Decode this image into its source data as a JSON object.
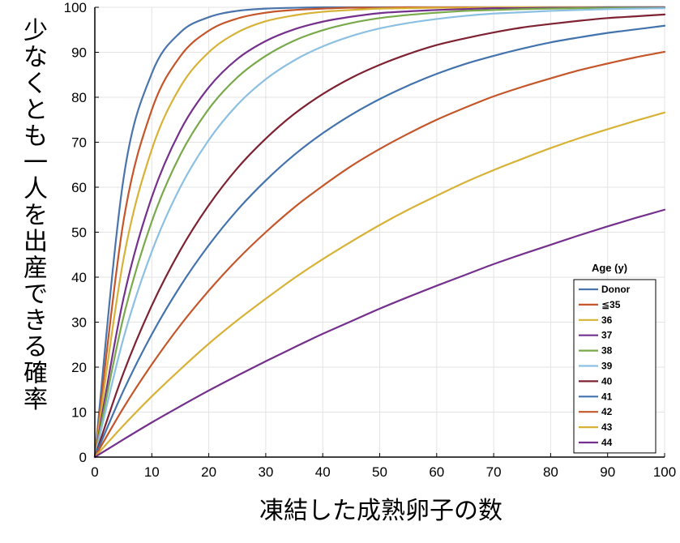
{
  "chart_data": {
    "type": "line",
    "title": "",
    "xlabel": "凍結した成熟卵子の数",
    "ylabel": "少なくとも一人を出産できる確率",
    "xlim": [
      0,
      100
    ],
    "ylim": [
      0,
      100
    ],
    "xticks": [
      "0",
      "10",
      "20",
      "30",
      "40",
      "50",
      "60",
      "70",
      "80",
      "90",
      "100"
    ],
    "yticks": [
      "0",
      "10",
      "20",
      "30",
      "40",
      "50",
      "60",
      "70",
      "80",
      "90",
      "100"
    ],
    "grid": true,
    "legend": {
      "title": "Age (y)",
      "placement": "bottom-right"
    },
    "x": [
      0,
      5,
      10,
      15,
      20,
      25,
      30,
      35,
      40,
      45,
      50,
      55,
      60,
      65,
      70,
      75,
      80,
      85,
      90,
      95,
      100
    ],
    "series": [
      {
        "name": "Donor",
        "color": "#4a74ac",
        "values": [
          0,
          61.6,
          85.3,
          94.4,
          97.8,
          99.2,
          99.7,
          99.9,
          100,
          100,
          100,
          100,
          100,
          100,
          100,
          100,
          100,
          100,
          100,
          100,
          100
        ]
      },
      {
        "name": "≦35",
        "color": "#c5562a",
        "values": [
          0,
          52.2,
          77.2,
          89.1,
          94.8,
          97.5,
          98.8,
          99.4,
          99.7,
          99.9,
          99.9,
          100,
          100,
          100,
          100,
          100,
          100,
          100,
          100,
          100,
          100
        ]
      },
      {
        "name": "36",
        "color": "#d8b236",
        "values": [
          0,
          43.8,
          68.4,
          82.3,
          90.0,
          94.4,
          96.9,
          98.2,
          99.0,
          99.4,
          99.7,
          99.8,
          99.9,
          99.9,
          100,
          100,
          100,
          100,
          100,
          100,
          100
        ]
      },
      {
        "name": "37",
        "color": "#74308c",
        "values": [
          0,
          35.1,
          57.8,
          72.6,
          82.2,
          88.5,
          92.5,
          95.1,
          96.8,
          97.9,
          98.7,
          99.1,
          99.4,
          99.6,
          99.8,
          99.8,
          99.9,
          99.9,
          100,
          100,
          100
        ]
      },
      {
        "name": "38",
        "color": "#78a94a",
        "values": [
          0,
          31.0,
          52.4,
          67.2,
          77.4,
          84.4,
          89.2,
          92.6,
          94.9,
          96.5,
          97.6,
          98.3,
          98.8,
          99.2,
          99.4,
          99.6,
          99.7,
          99.8,
          99.9,
          99.9,
          99.9
        ]
      },
      {
        "name": "39",
        "color": "#8cc0e2",
        "values": [
          0,
          26.3,
          45.7,
          60.0,
          70.5,
          78.3,
          84.0,
          88.2,
          91.3,
          93.6,
          95.3,
          96.5,
          97.4,
          98.1,
          98.6,
          98.9,
          99.2,
          99.4,
          99.6,
          99.7,
          99.8
        ]
      },
      {
        "name": "40",
        "color": "#7e2232",
        "values": [
          0,
          18.6,
          33.7,
          46.0,
          56.0,
          64.2,
          70.8,
          76.3,
          80.7,
          84.3,
          87.2,
          89.6,
          91.6,
          93.1,
          94.4,
          95.5,
          96.3,
          97.0,
          97.6,
          98.0,
          98.4
        ]
      },
      {
        "name": "41",
        "color": "#4373ad",
        "values": [
          0,
          14.7,
          27.3,
          38.0,
          47.1,
          54.9,
          61.5,
          67.2,
          72.0,
          76.1,
          79.6,
          82.6,
          85.2,
          87.4,
          89.2,
          90.8,
          92.2,
          93.3,
          94.3,
          95.1,
          95.9
        ]
      },
      {
        "name": "42",
        "color": "#c5562a",
        "values": [
          0,
          10.9,
          20.6,
          29.3,
          37.0,
          43.9,
          50.0,
          55.5,
          60.3,
          64.7,
          68.5,
          71.9,
          75.0,
          77.7,
          80.2,
          82.3,
          84.2,
          86.0,
          87.5,
          88.9,
          90.1
        ]
      },
      {
        "name": "43",
        "color": "#d8b236",
        "values": [
          0,
          7.0,
          13.5,
          19.5,
          25.2,
          30.4,
          35.2,
          39.8,
          44.0,
          47.9,
          51.6,
          55.0,
          58.1,
          61.1,
          63.8,
          66.3,
          68.7,
          70.9,
          72.9,
          74.8,
          76.6
        ]
      },
      {
        "name": "44",
        "color": "#74308c",
        "values": [
          0,
          3.9,
          7.7,
          11.3,
          14.8,
          18.1,
          21.3,
          24.4,
          27.4,
          30.2,
          33.0,
          35.6,
          38.1,
          40.5,
          42.9,
          45.1,
          47.2,
          49.3,
          51.3,
          53.2,
          55.0
        ]
      }
    ]
  }
}
